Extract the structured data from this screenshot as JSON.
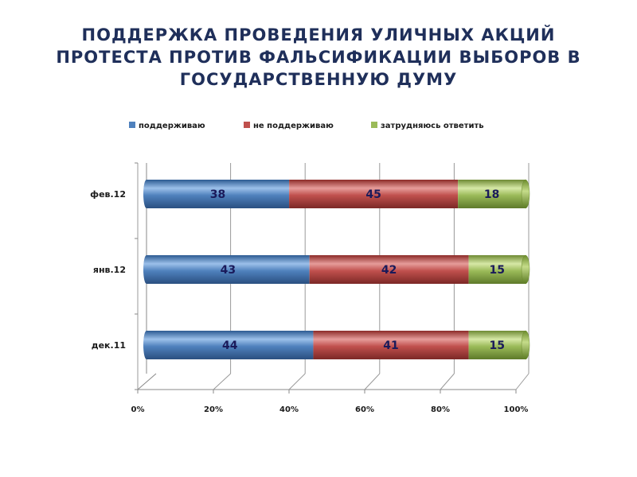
{
  "title_lines": [
    "ПОДДЕРЖКА ПРОВЕДЕНИЯ УЛИЧНЫХ АКЦИЙ",
    "ПРОТЕСТА ПРОТИВ ФАЛЬСИФИКАЦИИ ВЫБОРОВ В",
    "ГОСУДАРСТВЕННУЮ ДУМУ"
  ],
  "colors": {
    "series": [
      "#4f81bd",
      "#c0504d",
      "#9bbb59"
    ],
    "title": "#1f2f5a",
    "values": "#1a1a5a"
  },
  "chart_data": {
    "type": "bar",
    "orientation": "horizontal",
    "stacked": "percent",
    "categories": [
      "фев.12",
      "янв.12",
      "дек.11"
    ],
    "series": [
      {
        "name": "поддерживаю",
        "values": [
          38,
          43,
          44
        ]
      },
      {
        "name": "не поддерживаю",
        "values": [
          45,
          42,
          41
        ]
      },
      {
        "name": "затрудняюсь ответить",
        "values": [
          18,
          15,
          15
        ]
      }
    ],
    "xlim": [
      0,
      100
    ],
    "xticks": [
      "0%",
      "20%",
      "40%",
      "60%",
      "80%",
      "100%"
    ],
    "legend_position": "top",
    "grid": true
  }
}
